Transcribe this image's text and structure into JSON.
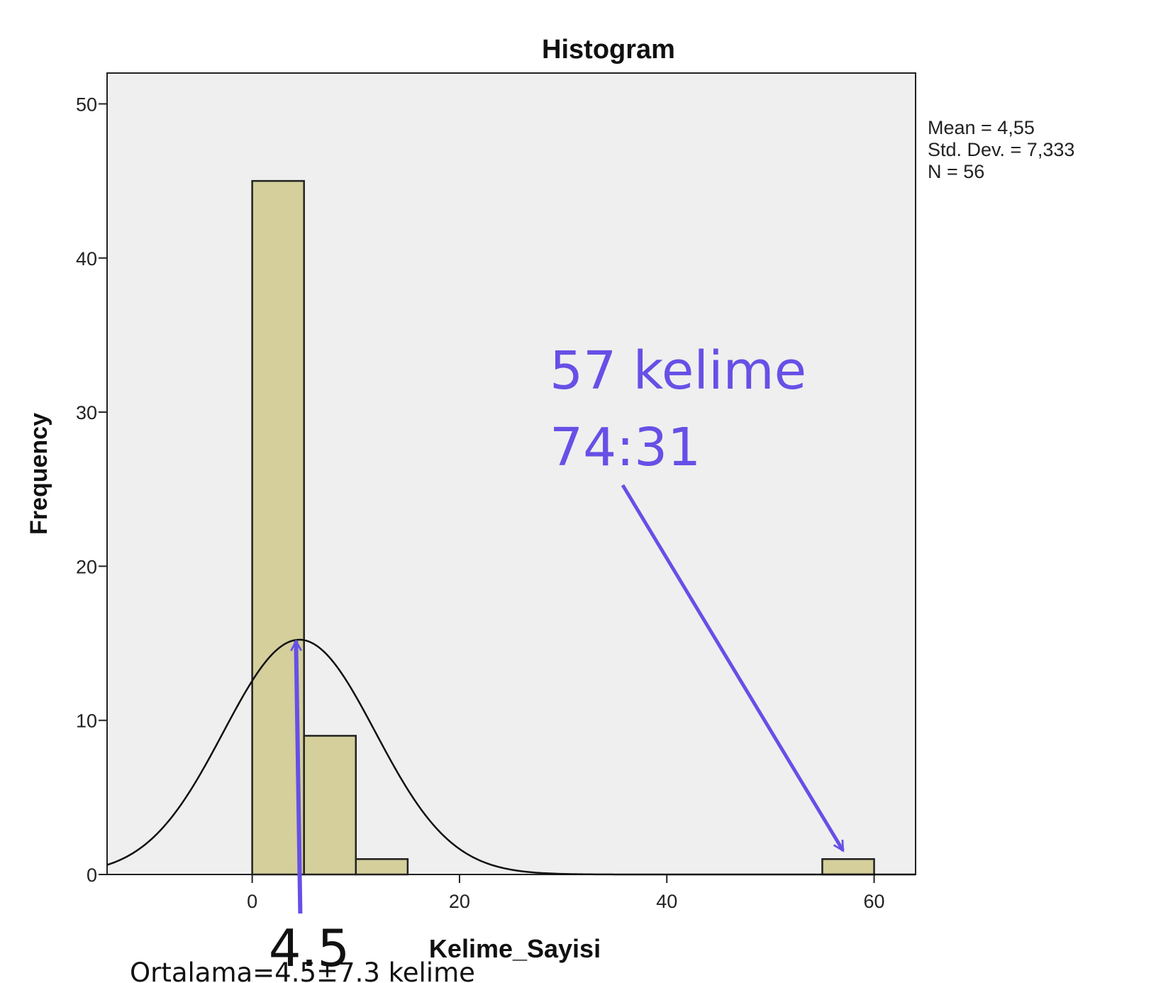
{
  "chart_data": {
    "type": "bar",
    "title": "Histogram",
    "xlabel": "Kelime_Sayisi",
    "ylabel": "Frequency",
    "xlim": [
      -14,
      64
    ],
    "ylim": [
      0,
      52
    ],
    "x_ticks": [
      0,
      20,
      40,
      60
    ],
    "y_ticks": [
      0,
      10,
      20,
      30,
      40,
      50
    ],
    "bin_width": 5,
    "bins": [
      {
        "from": 0,
        "to": 5,
        "count": 45
      },
      {
        "from": 5,
        "to": 10,
        "count": 9
      },
      {
        "from": 10,
        "to": 15,
        "count": 1
      },
      {
        "from": 55,
        "to": 60,
        "count": 1
      }
    ],
    "normal_curve": {
      "mean": 4.55,
      "sd": 7.333,
      "n": 56
    },
    "grid": false,
    "stats": [
      "Mean = 4,55",
      "Std. Dev. = 7,333",
      "N = 56"
    ],
    "colors": {
      "bar_fill": "#d4cf9b",
      "bar_stroke": "#222222",
      "plot_bg": "#efefef",
      "curve": "#111111",
      "annotation": "#6650e6"
    },
    "annotations": {
      "outlier_label": [
        "57 kelime",
        "74:31"
      ],
      "outlier_target_x": 57,
      "mean_marker_value": 4.5,
      "mean_label": "4.5",
      "footer": "Ortalama=4.5±7.3 kelime"
    }
  }
}
